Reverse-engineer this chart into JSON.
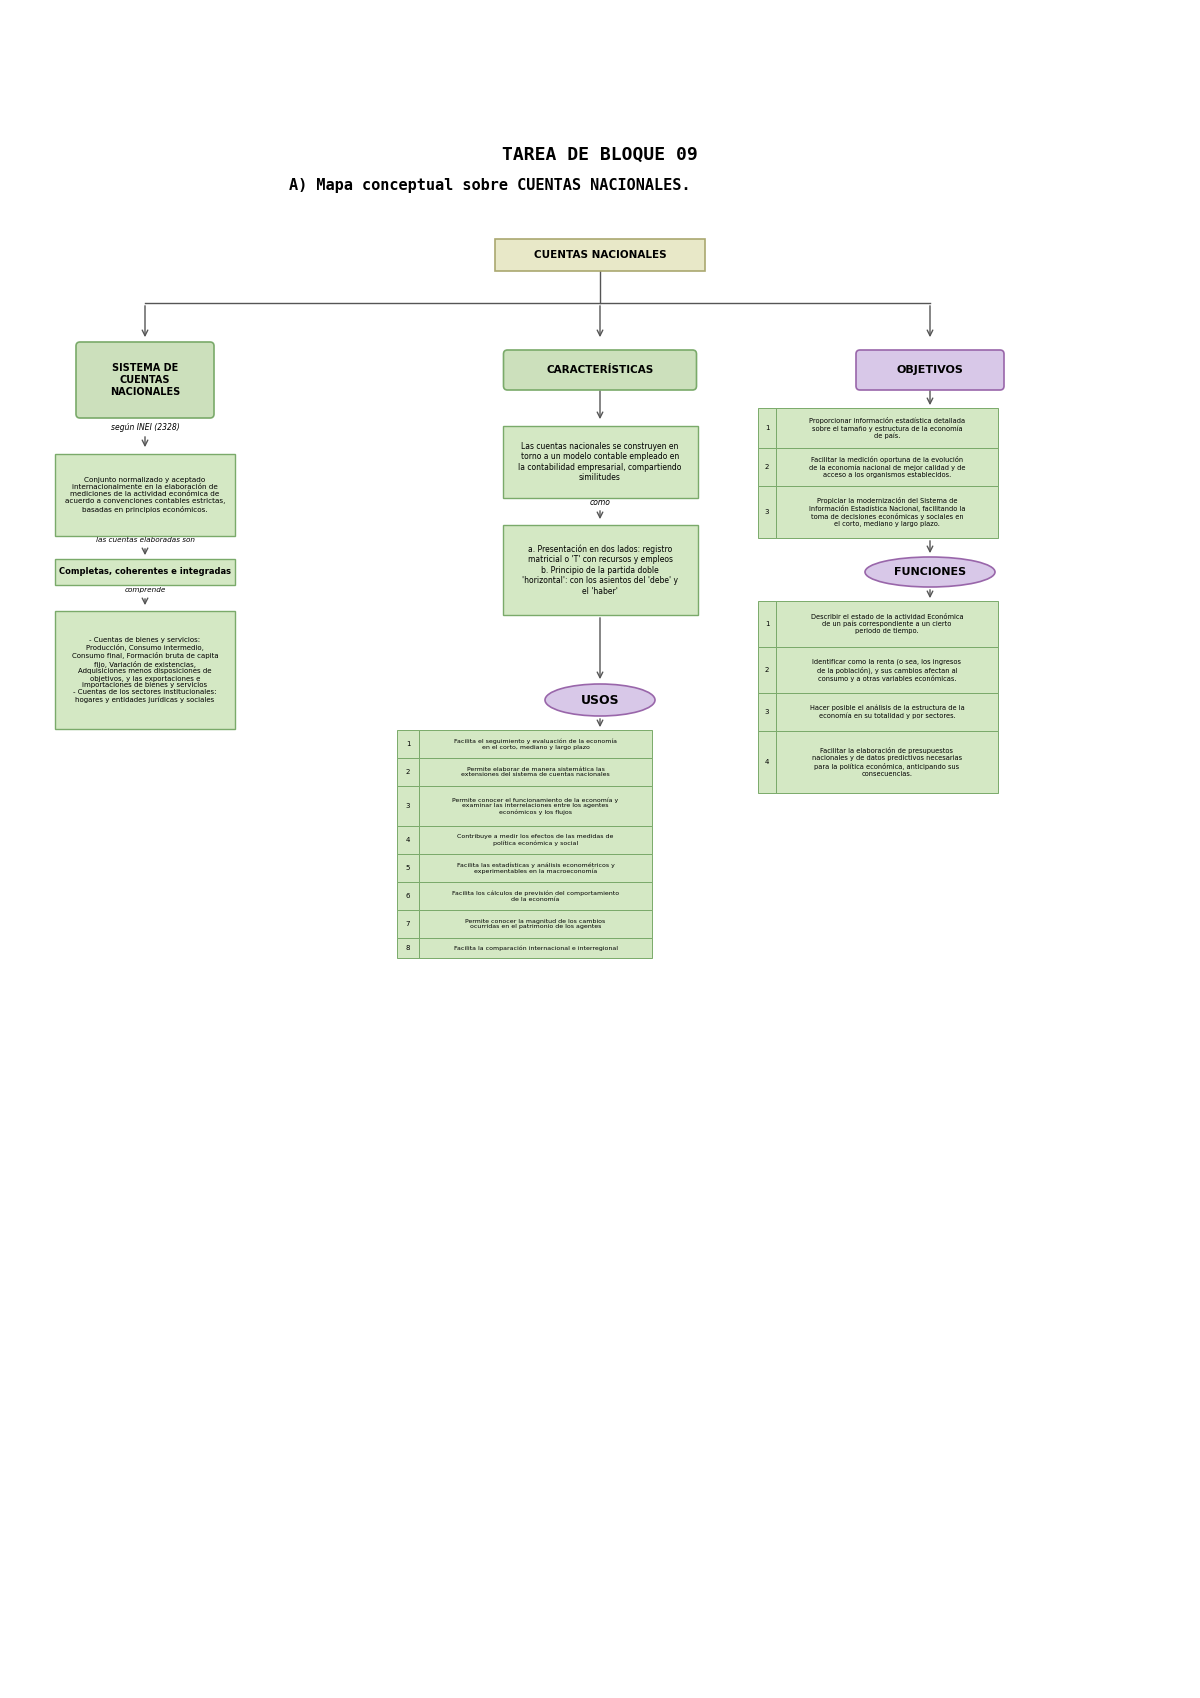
{
  "title1": "TAREA DE BLOQUE 09",
  "title2": "A) Mapa conceptual sobre CUENTAS NACIONALES.",
  "bg_color": "#ffffff",
  "usos_items": [
    {
      "n": "1",
      "text": "Facilita el seguimiento y evaluación de la economía\nen el corto, mediano y largo plazo"
    },
    {
      "n": "2",
      "text": "Permite elaborar de manera sistemática las\nextensiones del sistema de cuentas nacionales"
    },
    {
      "n": "3",
      "text": "Permite conocer el funcionamiento de la economía y\nexaminar las interrelaciones entre los agentes\neconómicos y los flujos"
    },
    {
      "n": "4",
      "text": "Contribuye a medir los efectos de las medidas de\npolítica económica y social"
    },
    {
      "n": "5",
      "text": "Facilita las estadísticas y análisis econométricos y\nexperimentables en la macroeconomía"
    },
    {
      "n": "6",
      "text": "Facilita los cálculos de previsión del comportamiento\nde la economía"
    },
    {
      "n": "7",
      "text": "Permite conocer la magnitud de los cambios\nocurridas en el patrimonio de los agentes"
    },
    {
      "n": "8",
      "text": "Facilita la comparación internacional e interregional"
    }
  ],
  "obj_items": [
    {
      "n": "1",
      "text": "Proporcionar información estadística detallada\nsobre el tamaño y estructura de la economía\nde país."
    },
    {
      "n": "2",
      "text": "Facilitar la medición oportuna de la evolución\nde la economía nacional de mejor calidad y de\nacceso a los organismos establecidos."
    },
    {
      "n": "3",
      "text": "Propiciar la modernización del Sistema de\nInformación Estadística Nacional, facilitando la\ntoma de decisiones económicas y sociales en\nel corto, mediano y largo plazo."
    }
  ],
  "func_items": [
    {
      "n": "1",
      "text": "Describir el estado de la actividad Económica\nde un país correspondiente a un cierto\nperiodo de tiempo."
    },
    {
      "n": "2",
      "text": "Identificar como la renta (o sea, los ingresos\nde la población), y sus cambios afectan al\nconsumo y a otras variables económicas."
    },
    {
      "n": "3",
      "text": "Hacer posible el análisis de la estructura de la\neconomía en su totalidad y por sectores."
    },
    {
      "n": "4",
      "text": "Facilitar la elaboración de presupuestos\nnacionales y de datos predictivos necesarias\npara la política económica, anticipando sus\nconsecuencias."
    }
  ]
}
